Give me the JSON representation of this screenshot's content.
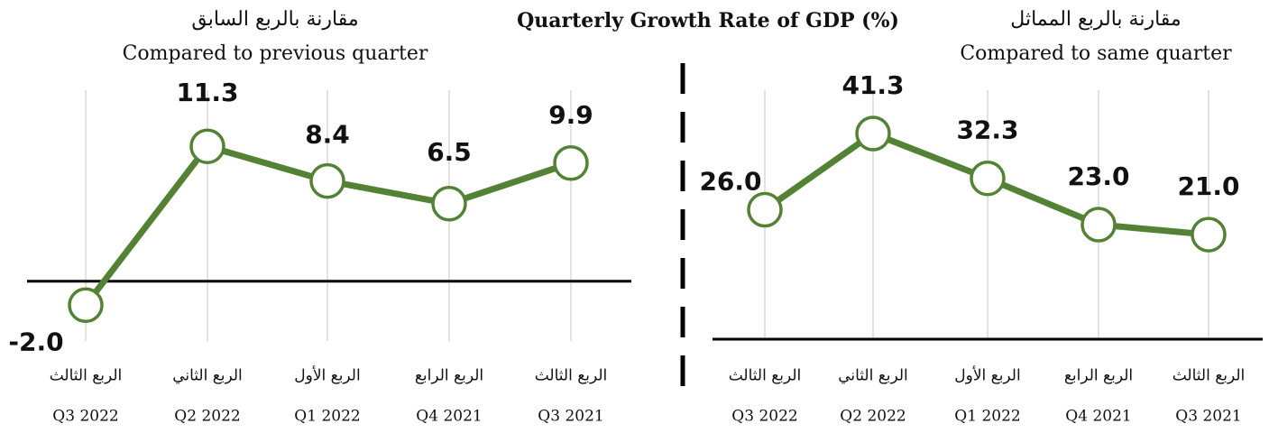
{
  "title": "Quarterly Growth Rate of GDP (%)",
  "chart_data": [
    {
      "type": "line",
      "subtitle_ar": "مقارنة بالربع السابق",
      "subtitle": "Compared to previous quarter",
      "categories_ar": [
        "الربع الثالث",
        "الربع الثاني",
        "الربع الأول",
        "الربع الرابع",
        "الربع الثالث"
      ],
      "categories": [
        "Q3 2022",
        "Q2 2022",
        "Q1 2022",
        "Q4 2021",
        "Q3 2021"
      ],
      "values": [
        -2,
        11.3,
        8.4,
        6.5,
        9.9
      ],
      "value_labels": [
        "-2.0",
        "11.3",
        "8.4",
        "6.5",
        "9.9"
      ],
      "color": "#548235",
      "ylim": [
        -5,
        16
      ]
    },
    {
      "type": "line",
      "subtitle_ar": "مقارنة بالربع المماثل",
      "subtitle": "Compared to same quarter",
      "categories_ar": [
        "الربع الثالث",
        "الربع الثاني",
        "الربع الأول",
        "الربع الرابع",
        "الربع الثالث"
      ],
      "categories": [
        "Q3 2022",
        "Q2 2022",
        "Q1 2022",
        "Q4 2021",
        "Q3 2021"
      ],
      "values": [
        26,
        41.3,
        32.3,
        23,
        21
      ],
      "value_labels": [
        "26.0",
        "41.3",
        "32.3",
        "23.0",
        "21.0"
      ],
      "color": "#548235",
      "ylim": [
        0,
        50
      ]
    }
  ]
}
